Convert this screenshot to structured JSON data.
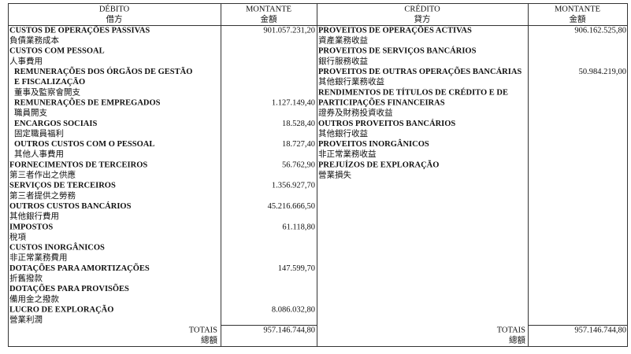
{
  "columns": [
    {
      "title": "DÉBITO",
      "title_zh": "借方"
    },
    {
      "title": "MONTANTE",
      "title_zh": "金額"
    },
    {
      "title": "CRÉDITO",
      "title_zh": "貸方"
    },
    {
      "title": "MONTANTE",
      "title_zh": "金額"
    }
  ],
  "debit": [
    {
      "lines": [
        "CUSTOS DE OPERAÇÕES PASSIVAS"
      ],
      "zh": "負債業務成本",
      "amount": "901.057.231,20"
    },
    {
      "lines": [
        "CUSTOS COM PESSOAL"
      ],
      "zh": "人事費用",
      "items": [
        {
          "lines": [
            "REMUNERAÇÕES DOS ÓRGÃOS DE GESTÃO",
            "E FISCALIZAÇÃO"
          ],
          "zh": "董事及監察會開支"
        },
        {
          "lines": [
            "REMUNERAÇÕES DE EMPREGADOS"
          ],
          "zh": "職員開支",
          "amount": "1.127.149,40"
        },
        {
          "lines": [
            "ENCARGOS SOCIAIS"
          ],
          "zh": "固定職員福利",
          "amount": "18.528,40"
        },
        {
          "lines": [
            "OUTROS CUSTOS COM O PESSOAL"
          ],
          "zh": "其他人事費用",
          "amount": "18.727,40"
        }
      ]
    },
    {
      "lines": [
        "FORNECIMENTOS DE TERCEIROS"
      ],
      "zh": "第三者作出之供應",
      "amount": "56.762,90"
    },
    {
      "lines": [
        "SERVIÇOS DE TERCEIROS"
      ],
      "zh": "第三者提供之勞務",
      "amount": "1.356.927,70"
    },
    {
      "lines": [
        "OUTROS CUSTOS BANCÁRIOS"
      ],
      "zh": "其他銀行費用",
      "amount": "45.216.666,50"
    },
    {
      "lines": [
        "IMPOSTOS"
      ],
      "zh": "稅項",
      "amount": "61.118,80"
    },
    {
      "lines": [
        "CUSTOS INORGÂNICOS"
      ],
      "zh": "非正常業務費用"
    },
    {
      "lines": [
        "DOTAÇÕES PARA AMORTIZAÇÕES"
      ],
      "zh": "折舊撥款",
      "amount": "147.599,70"
    },
    {
      "lines": [
        "DOTAÇÕES PARA PROVISÕES"
      ],
      "zh": "備用金之撥款"
    },
    {
      "lines": [
        "LUCRO DE EXPLORAÇÃO"
      ],
      "zh": "營業利潤",
      "amount": "8.086.032,80"
    }
  ],
  "credit": [
    {
      "lines": [
        "PROVEITOS DE OPERAÇÕES ACTIVAS"
      ],
      "zh": "資產業務收益",
      "amount": "906.162.525,80"
    },
    {
      "lines": [
        "PROVEITOS DE SERVIÇOS BANCÁRIOS"
      ],
      "zh": "銀行服務收益"
    },
    {
      "lines": [
        "PROVEITOS DE OUTRAS OPERAÇÕES BANCÁRIAS"
      ],
      "zh": "其他銀行業務收益",
      "amount": "50.984.219,00"
    },
    {
      "lines": [
        "RENDIMENTOS DE TÍTULOS DE CRÉDITO E DE",
        "PARTICIPAÇÕES FINANCEIRAS"
      ],
      "zh": "證券及財務投資收益"
    },
    {
      "lines": [
        "OUTROS PROVEITOS BANCÁRIOS"
      ],
      "zh": "其他銀行收益"
    },
    {
      "lines": [
        "PROVEITOS INORGÂNICOS"
      ],
      "zh": "非正常業務收益"
    },
    {
      "lines": [
        "PREJUÍZOS DE EXPLORAÇÃO"
      ],
      "zh": "營業損失"
    }
  ],
  "totals": [
    {
      "label": "TOTAIS",
      "label_zh": "總額",
      "amount": "957.146.744,80"
    },
    {
      "label": "TOTAIS",
      "label_zh": "總額",
      "amount": "957.146.744,80"
    }
  ]
}
